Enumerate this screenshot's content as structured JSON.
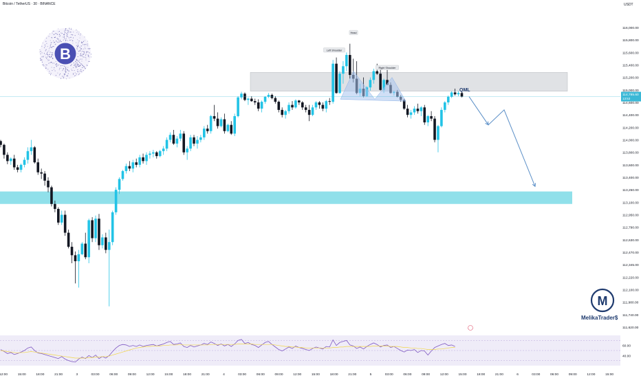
{
  "header": {
    "symbol_label": "Bitcoin / TetherUS · 30 · BINANCE",
    "currency": "USDT"
  },
  "price_tag": {
    "price": "114,785.60",
    "countdown": "13:53"
  },
  "brand": {
    "name": "MelikaTrader$",
    "logo_letter": "M",
    "bitcoin_symbol": "B"
  },
  "colors": {
    "up": "#22c3e6",
    "down": "#131722",
    "supply_zone": "#d5d8dc",
    "demand_zone": "#7ddbe6",
    "pattern_fill": "#a9c4ee",
    "arrow": "#5b8fc7",
    "rsi_line": "#7e57c2",
    "rsi_ma": "#f2d648",
    "price_tag": "#3ab8d6",
    "brand": "#1e3a6e"
  },
  "chart_data": {
    "type": "candlestick",
    "title": "Bitcoin / TetherUS · 30 · BINANCE",
    "price_axis": {
      "ticks": [
        "116,000.00",
        "115,800.00",
        "115,600.00",
        "115,400.00",
        "115,200.00",
        "115,000.00",
        "114,785.60",
        "114,600.00",
        "114,400.00",
        "114,200.00",
        "114,000.00",
        "113,800.00",
        "113,600.00",
        "113,400.00",
        "113,250.00",
        "113,100.00",
        "112,950.00",
        "112,790.00",
        "112,630.00",
        "112,470.00",
        "112,345.00",
        "112,220.00",
        "112,100.00",
        "111,980.00",
        "111,740.00",
        "111,620.00"
      ],
      "values": [
        116000,
        115800,
        115600,
        115400,
        115200,
        115000,
        114785.6,
        114600,
        114400,
        114200,
        114000,
        113800,
        113600,
        113400,
        113250,
        113100,
        112950,
        112790,
        112630,
        112470,
        112345,
        112220,
        112100,
        111980,
        111740,
        111620
      ]
    },
    "time_axis": {
      "labels": [
        "12:00",
        "15:00",
        "18:00",
        "21:00",
        "3",
        "03:00",
        "06:00",
        "09:00",
        "12:00",
        "15:00",
        "18:00",
        "21:00",
        "4",
        "03:00",
        "06:00",
        "09:00",
        "12:00",
        "15:00",
        "18:00",
        "21:00",
        "5",
        "03:00",
        "06:00",
        "09:00",
        "12:00",
        "15:00",
        "18:00",
        "21:00",
        "6",
        "03:00",
        "06:00",
        "09:00",
        "12:00",
        "15:00"
      ]
    },
    "candles_ohlc": [
      [
        113980,
        114000,
        113880,
        113920
      ],
      [
        113920,
        113940,
        113700,
        113760
      ],
      [
        113760,
        113800,
        113610,
        113660
      ],
      [
        113660,
        113720,
        113600,
        113700
      ],
      [
        113700,
        113760,
        113520,
        113560
      ],
      [
        113560,
        113600,
        113480,
        113520
      ],
      [
        113520,
        113620,
        113480,
        113600
      ],
      [
        113600,
        113720,
        113560,
        113680
      ],
      [
        113680,
        113880,
        113620,
        113820
      ],
      [
        113820,
        114000,
        113760,
        113880
      ],
      [
        113880,
        113900,
        113620,
        113640
      ],
      [
        113640,
        113700,
        113440,
        113480
      ],
      [
        113480,
        113540,
        113380,
        113460
      ],
      [
        113460,
        113500,
        113300,
        113360
      ],
      [
        113360,
        113400,
        113220,
        113280
      ],
      [
        113280,
        113300,
        113050,
        113080
      ],
      [
        113080,
        113120,
        112980,
        113020
      ],
      [
        113020,
        113040,
        112820,
        112850
      ],
      [
        112850,
        113000,
        112820,
        112950
      ],
      [
        112950,
        113000,
        112680,
        112720
      ],
      [
        112720,
        112760,
        112520,
        112540
      ],
      [
        112540,
        112600,
        112360,
        112440
      ],
      [
        112440,
        112480,
        112160,
        112380
      ],
      [
        112380,
        112500,
        112120,
        112450
      ],
      [
        112450,
        112600,
        112440,
        112580
      ],
      [
        112580,
        112720,
        112400,
        112420
      ],
      [
        112420,
        112900,
        112360,
        112880
      ],
      [
        112880,
        112920,
        112600,
        112650
      ],
      [
        112650,
        112940,
        112600,
        112900
      ],
      [
        112900,
        112960,
        112500,
        112560
      ],
      [
        112560,
        112700,
        112520,
        112660
      ],
      [
        112660,
        112720,
        112460,
        112500
      ],
      [
        112500,
        112760,
        111900,
        112600
      ],
      [
        112600,
        113000,
        112560,
        112980
      ],
      [
        112980,
        113280,
        112950,
        113250
      ],
      [
        113250,
        113400,
        113200,
        113380
      ],
      [
        113380,
        113520,
        113360,
        113500
      ],
      [
        113500,
        113620,
        113460,
        113580
      ],
      [
        113580,
        113660,
        113500,
        113540
      ],
      [
        113540,
        113680,
        113480,
        113640
      ],
      [
        113640,
        113700,
        113560,
        113600
      ],
      [
        113600,
        113760,
        113560,
        113720
      ],
      [
        113720,
        113780,
        113620,
        113660
      ],
      [
        113660,
        113800,
        113600,
        113760
      ],
      [
        113760,
        113820,
        113700,
        113780
      ],
      [
        113780,
        113840,
        113720,
        113800
      ],
      [
        113800,
        113820,
        113700,
        113740
      ],
      [
        113740,
        113840,
        113720,
        113820
      ],
      [
        113820,
        113900,
        113760,
        113860
      ],
      [
        113860,
        114040,
        113820,
        114000
      ],
      [
        114000,
        114120,
        113960,
        114080
      ],
      [
        114080,
        114160,
        113920,
        113940
      ],
      [
        113940,
        114060,
        113880,
        114020
      ],
      [
        114020,
        114160,
        113980,
        114100
      ],
      [
        114100,
        114140,
        113760,
        113800
      ],
      [
        113800,
        113900,
        113680,
        113860
      ],
      [
        113860,
        114080,
        113820,
        114040
      ],
      [
        114040,
        114080,
        113900,
        113940
      ],
      [
        113940,
        114060,
        113860,
        114000
      ],
      [
        114000,
        114080,
        113960,
        114040
      ],
      [
        114040,
        114220,
        114000,
        114180
      ],
      [
        114180,
        114240,
        114100,
        114140
      ],
      [
        114140,
        114400,
        114100,
        114380
      ],
      [
        114380,
        114560,
        114300,
        114340
      ],
      [
        114340,
        114440,
        114180,
        114220
      ],
      [
        114220,
        114360,
        114200,
        114330
      ],
      [
        114330,
        114420,
        114100,
        114140
      ],
      [
        114140,
        114260,
        114120,
        114240
      ],
      [
        114240,
        114300,
        114080,
        114100
      ],
      [
        114100,
        114420,
        114060,
        114380
      ],
      [
        114380,
        114800,
        114360,
        114760
      ],
      [
        114760,
        114940,
        114700,
        114880
      ],
      [
        114880,
        114920,
        114640,
        114680
      ],
      [
        114680,
        114760,
        114560,
        114720
      ],
      [
        114720,
        114800,
        114620,
        114640
      ],
      [
        114640,
        114720,
        114560,
        114600
      ],
      [
        114600,
        114700,
        114460,
        114500
      ],
      [
        114500,
        114660,
        114440,
        114620
      ],
      [
        114620,
        114800,
        114580,
        114780
      ],
      [
        114780,
        114900,
        114740,
        114840
      ],
      [
        114840,
        114880,
        114700,
        114740
      ],
      [
        114740,
        114800,
        114580,
        114620
      ],
      [
        114620,
        114660,
        114440,
        114480
      ],
      [
        114480,
        114520,
        114360,
        114400
      ],
      [
        114400,
        114480,
        114340,
        114460
      ],
      [
        114460,
        114600,
        114420,
        114560
      ],
      [
        114560,
        114640,
        114480,
        114520
      ],
      [
        114520,
        114700,
        114500,
        114660
      ],
      [
        114660,
        114680,
        114560,
        114600
      ],
      [
        114600,
        114640,
        114480,
        114520
      ],
      [
        114520,
        114560,
        114440,
        114480
      ],
      [
        114480,
        114560,
        114300,
        114400
      ],
      [
        114400,
        114560,
        114380,
        114520
      ],
      [
        114520,
        114640,
        114480,
        114600
      ],
      [
        114600,
        114640,
        114500,
        114560
      ],
      [
        114560,
        114600,
        114460,
        114500
      ],
      [
        114500,
        114680,
        114440,
        114640
      ],
      [
        114640,
        114740,
        114560,
        114620
      ],
      [
        114620,
        115480,
        114580,
        115420
      ],
      [
        115420,
        115520,
        114880,
        114900
      ],
      [
        114900,
        115300,
        114880,
        115260
      ],
      [
        115260,
        115460,
        115100,
        115380
      ],
      [
        115380,
        115600,
        115300,
        115560
      ],
      [
        115560,
        115740,
        115180,
        115240
      ],
      [
        115240,
        115500,
        115120,
        115180
      ],
      [
        115180,
        115460,
        114860,
        114900
      ],
      [
        114900,
        115100,
        114800,
        115020
      ],
      [
        115020,
        115200,
        114760,
        114800
      ],
      [
        114800,
        115060,
        114780,
        115040
      ],
      [
        115040,
        115200,
        114980,
        115160
      ],
      [
        115160,
        115340,
        115100,
        115300
      ],
      [
        115300,
        115420,
        115240,
        115260
      ],
      [
        115260,
        115340,
        114980,
        115000
      ],
      [
        115000,
        115180,
        114900,
        115160
      ],
      [
        115160,
        115320,
        115100,
        115080
      ],
      [
        115080,
        115120,
        114880,
        114900
      ],
      [
        114900,
        114980,
        114820,
        114940
      ],
      [
        114940,
        115000,
        114760,
        114780
      ],
      [
        114780,
        114840,
        114620,
        114680
      ],
      [
        114680,
        114720,
        114480,
        114500
      ],
      [
        114500,
        114560,
        114360,
        114400
      ],
      [
        114400,
        114480,
        114340,
        114440
      ],
      [
        114440,
        114540,
        114400,
        114500
      ],
      [
        114500,
        114580,
        114420,
        114460
      ],
      [
        114460,
        114540,
        114380,
        114520
      ],
      [
        114520,
        114560,
        114240,
        114280
      ],
      [
        114280,
        114400,
        114220,
        114380
      ],
      [
        114380,
        114460,
        114300,
        114340
      ],
      [
        114340,
        114380,
        113960,
        114000
      ],
      [
        114000,
        114240,
        113800,
        114220
      ],
      [
        114220,
        114520,
        114200,
        114480
      ],
      [
        114480,
        114640,
        114440,
        114600
      ],
      [
        114600,
        114820,
        114560,
        114780
      ],
      [
        114780,
        114960,
        114740,
        114920
      ],
      [
        114920,
        115020,
        114820,
        114860
      ],
      [
        114860,
        114960,
        114800,
        114900
      ],
      [
        114900,
        114940,
        114760,
        114785.6
      ]
    ],
    "rsi_panel": {
      "ticks": [
        "60.00",
        "40.00"
      ],
      "values": [
        60,
        40
      ],
      "series": [
        {
          "name": "RSI",
          "values": [
            52,
            48,
            44,
            46,
            42,
            44,
            47,
            50,
            55,
            57,
            50,
            45,
            44,
            42,
            40,
            38,
            36,
            34,
            38,
            33,
            30,
            28,
            27,
            33,
            37,
            34,
            40,
            36,
            41,
            34,
            38,
            35,
            40,
            48,
            55,
            60,
            62,
            61,
            58,
            60,
            58,
            61,
            58,
            60,
            61,
            62,
            59,
            61,
            63,
            66,
            68,
            62,
            63,
            65,
            58,
            56,
            60,
            57,
            59,
            61,
            64,
            62,
            67,
            64,
            60,
            63,
            59,
            62,
            58,
            63,
            70,
            72,
            64,
            66,
            62,
            60,
            56,
            61,
            66,
            68,
            62,
            57,
            52,
            49,
            53,
            57,
            54,
            59,
            56,
            54,
            52,
            50,
            54,
            57,
            55,
            53,
            58,
            57,
            71,
            60,
            66,
            68,
            70,
            61,
            59,
            54,
            57,
            53,
            58,
            62,
            65,
            62,
            57,
            60,
            61,
            56,
            58,
            54,
            50,
            47,
            51,
            50,
            52,
            46,
            50,
            49,
            41,
            49,
            56,
            59,
            62,
            64,
            60,
            61,
            58
          ]
        },
        {
          "name": "RSI MA",
          "values": [
            50,
            49,
            48,
            47,
            46,
            45,
            46,
            46,
            47,
            48,
            47,
            46,
            45,
            44,
            43,
            42,
            41,
            40,
            39,
            38,
            37,
            36,
            35,
            35,
            35,
            35,
            36,
            36,
            37,
            37,
            38,
            38,
            39,
            41,
            43,
            45,
            47,
            49,
            51,
            53,
            55,
            56,
            57,
            58,
            58,
            59,
            59,
            59,
            60,
            60,
            61,
            61,
            61,
            62,
            61,
            61,
            61,
            61,
            61,
            61,
            61,
            61,
            62,
            62,
            62,
            62,
            62,
            62,
            62,
            62,
            63,
            63,
            63,
            63,
            63,
            62,
            62,
            62,
            62,
            62,
            62,
            61,
            60,
            59,
            58,
            58,
            57,
            57,
            56,
            56,
            55,
            55,
            55,
            55,
            55,
            55,
            55,
            55,
            56,
            56,
            57,
            57,
            58,
            58,
            58,
            58,
            58,
            58,
            58,
            58,
            59,
            59,
            59,
            59,
            59,
            58,
            58,
            58,
            57,
            56,
            56,
            55,
            55,
            54,
            54,
            53,
            52,
            52,
            52,
            53,
            53,
            54,
            55,
            56,
            56
          ]
        }
      ]
    },
    "annotations": {
      "pattern_labels": [
        "Left Shoulder",
        "Head",
        "Right Shoulder"
      ],
      "qml_label": "QML",
      "supply_zone_range": [
        114960,
        115280
      ],
      "demand_zone_range": [
        113080,
        113230
      ],
      "projected_path": [
        114785.6,
        114240,
        114480,
        113290
      ]
    }
  }
}
